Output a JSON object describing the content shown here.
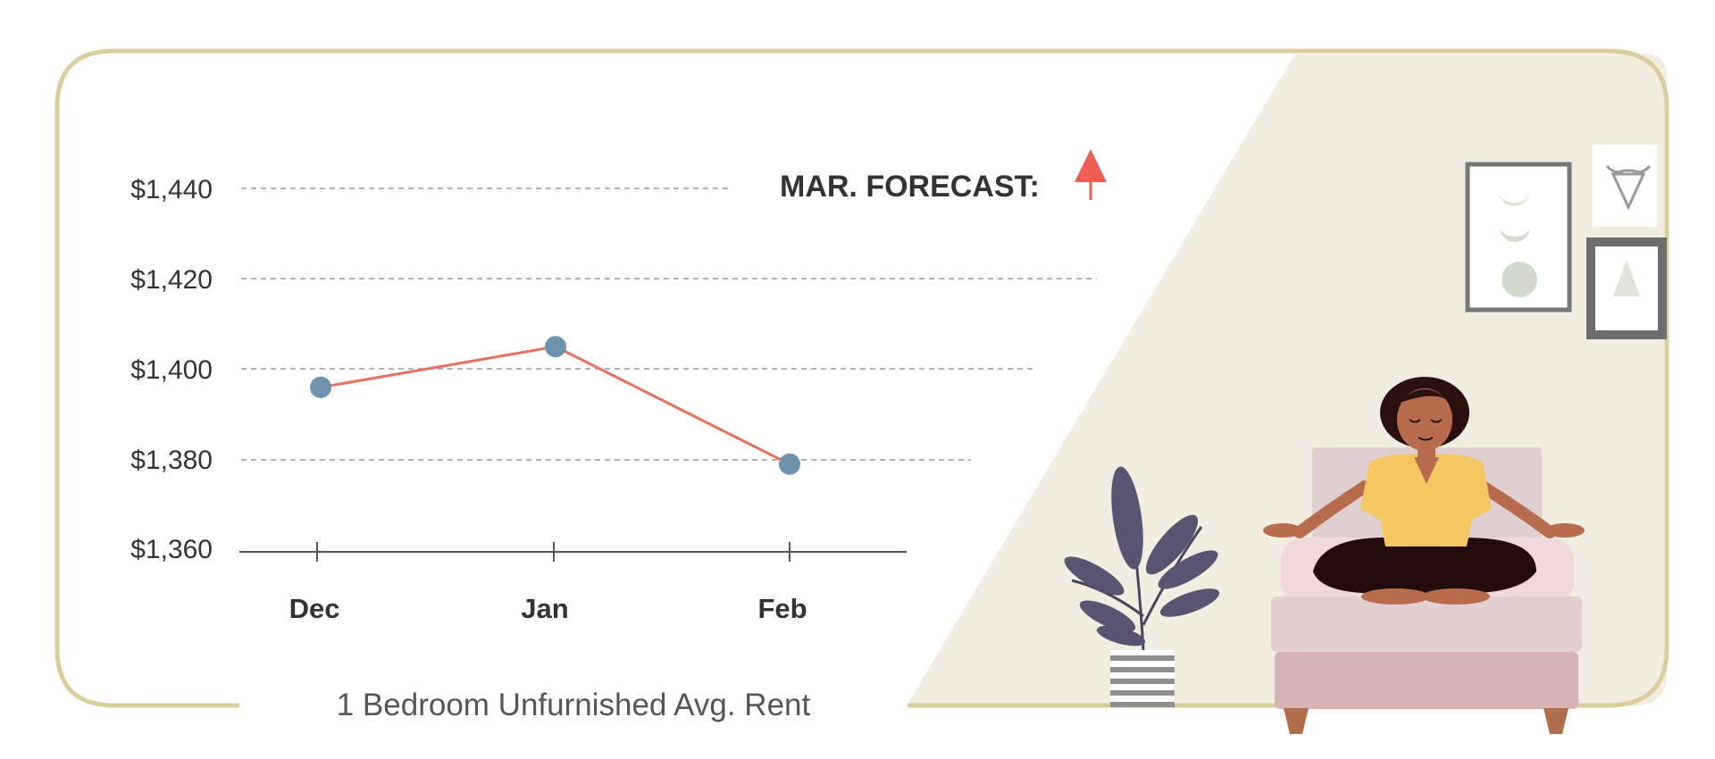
{
  "colors": {
    "frame": "#d9cd9e",
    "room_wall": "#f1ede0",
    "line": "#e8705f",
    "point": "#6f93ad",
    "forecast_up": "#ef5e55",
    "grid": "#999999",
    "axis": "#555555"
  },
  "forecast": {
    "label": "MAR. FORECAST:",
    "direction": "up",
    "icon": "arrow-up-icon"
  },
  "caption": "1 Bedroom Unfurnished Avg. Rent",
  "chart_data": {
    "type": "line",
    "title": "",
    "xlabel": "",
    "ylabel": "",
    "categories": [
      "Dec",
      "Jan",
      "Feb"
    ],
    "series": [
      {
        "values": [
          1396,
          1405,
          1379
        ]
      }
    ],
    "ylim": [
      1360,
      1440
    ],
    "yticks": [
      1360,
      1380,
      1400,
      1420,
      1440
    ],
    "ytick_labels": [
      "$1,360",
      "$1,380",
      "$1,400",
      "$1,420",
      "$1,440"
    ],
    "grid": true,
    "legend": "none"
  },
  "illustration": {
    "subject": "woman meditating on a sofa",
    "icons": [
      "plant-icon",
      "moon-phases-frame-icon",
      "tree-frame-icon",
      "bull-skull-frame-icon"
    ]
  }
}
